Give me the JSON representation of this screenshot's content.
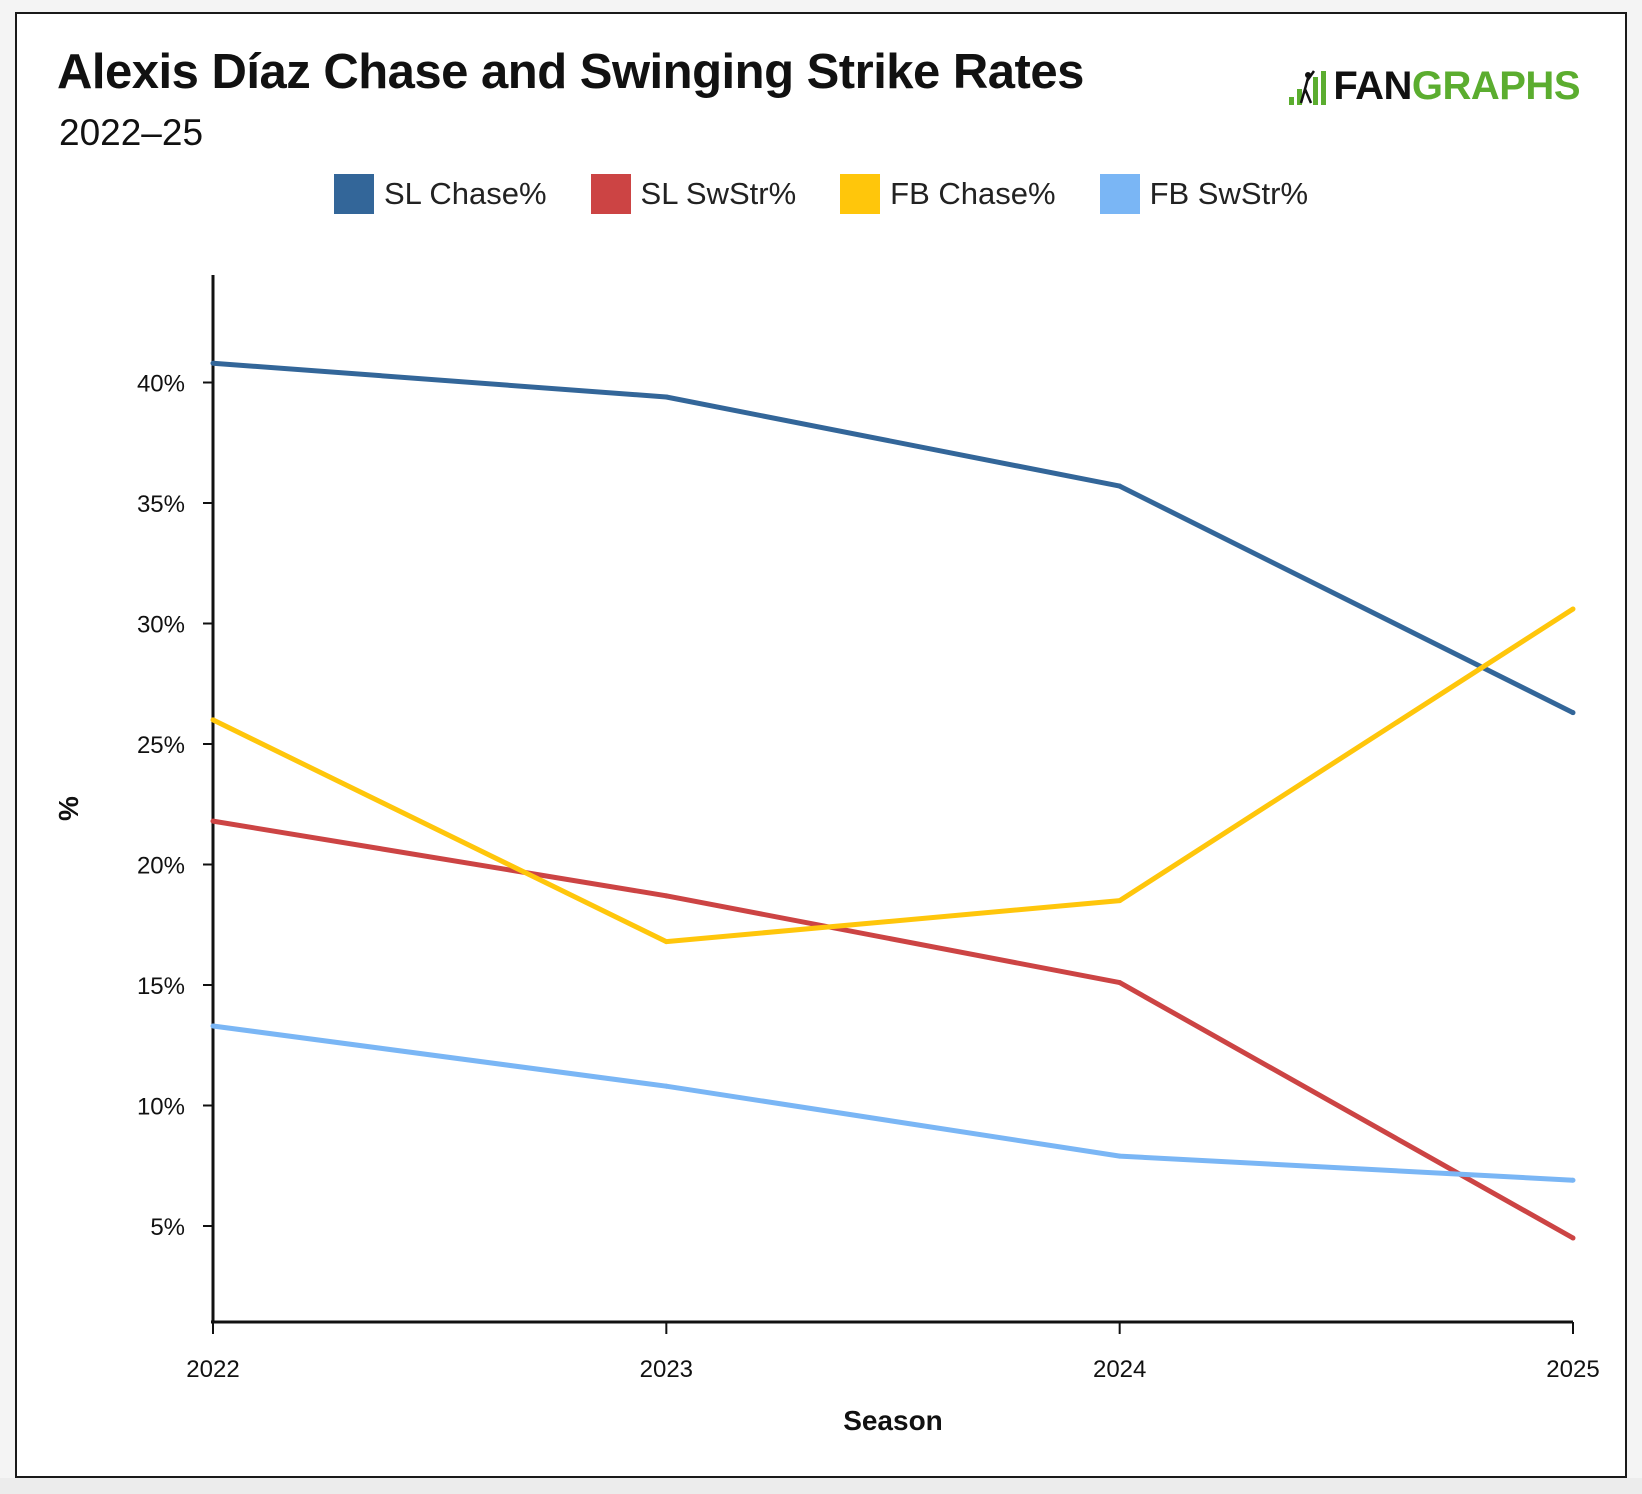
{
  "header": {
    "title": "Alexis Díaz Chase and Swinging Strike Rates",
    "subtitle": "2022–25"
  },
  "logo": {
    "fan": "FAN",
    "graphs": "GRAPHS",
    "icon": "fangraphs-bars-icon"
  },
  "chart_data": {
    "type": "line",
    "title": "Alexis Díaz Chase and Swinging Strike Rates",
    "subtitle": "2022–25",
    "xlabel": "Season",
    "ylabel": "%",
    "x": [
      "2022",
      "2023",
      "2024",
      "2025"
    ],
    "ylim": [
      1,
      44.5
    ],
    "yticks": [
      5,
      10,
      15,
      20,
      25,
      30,
      35,
      40
    ],
    "ytick_labels": [
      "5%",
      "10%",
      "15%",
      "20%",
      "25%",
      "30%",
      "35%",
      "40%"
    ],
    "grid": false,
    "legend_position": "top-center",
    "series": [
      {
        "name": "SL Chase%",
        "color": "#336699",
        "values": [
          40.8,
          39.4,
          35.7,
          26.3
        ]
      },
      {
        "name": "SL SwStr%",
        "color": "#cc4444",
        "values": [
          21.8,
          18.7,
          15.1,
          4.5
        ]
      },
      {
        "name": "FB Chase%",
        "color": "#ffc60b",
        "values": [
          26.0,
          16.8,
          18.5,
          30.6
        ]
      },
      {
        "name": "FB SwStr%",
        "color": "#7ab6f5",
        "values": [
          13.3,
          10.8,
          7.9,
          6.9
        ]
      }
    ]
  }
}
